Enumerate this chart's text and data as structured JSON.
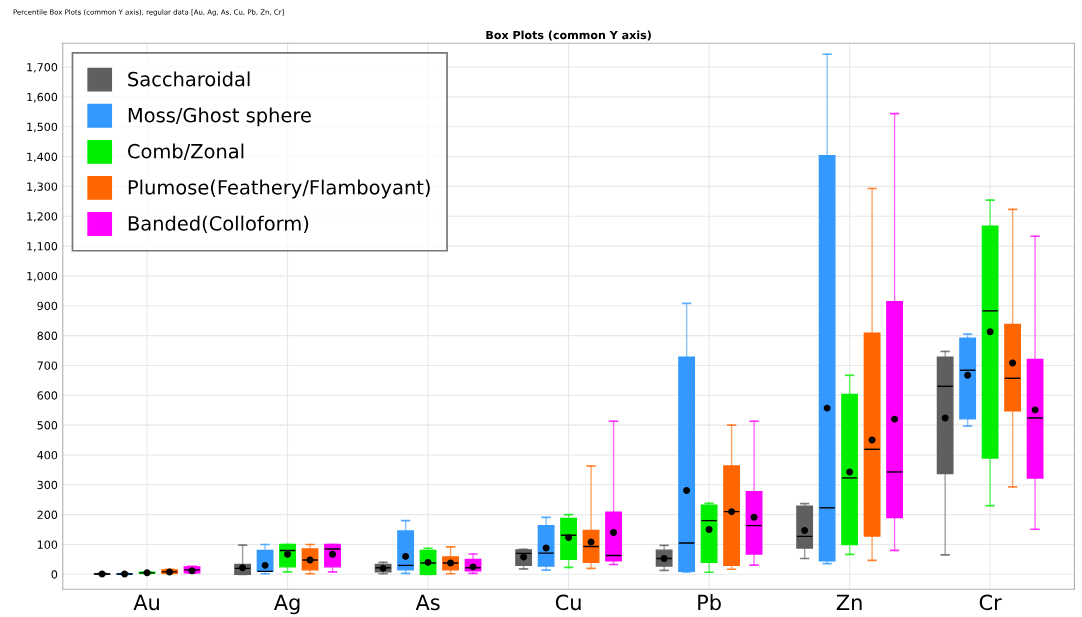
{
  "chart_data": {
    "type": "box",
    "title": "Box Plots (common Y axis)",
    "annotations": [
      "Percentile Box Plots (common Y axis), regular data [Au, Ag, As, Cu, Pb, Zn, Cr]"
    ],
    "categories": [
      "Au",
      "Ag",
      "As",
      "Cu",
      "Pb",
      "Zn",
      "Cr"
    ],
    "ylim": [
      -50,
      1780
    ],
    "yticks": [
      0,
      100,
      200,
      300,
      400,
      500,
      600,
      700,
      800,
      900,
      {
        "value": 1000,
        "label": "1,000"
      },
      {
        "value": 1100,
        "label": "1,100"
      },
      {
        "value": 1200,
        "label": "1,200"
      },
      {
        "value": 1300,
        "label": "1,300"
      },
      {
        "value": 1400,
        "label": "1,400"
      },
      {
        "value": 1500,
        "label": "1,500"
      },
      {
        "value": 1600,
        "label": "1,600"
      },
      {
        "value": 1700,
        "label": "1,700"
      }
    ],
    "grid": true,
    "legend": "top left",
    "marker": "circle",
    "series": [
      {
        "name": "Saccharoidal",
        "color": "#5f5f5f",
        "boxes": [
          {
            "low": 0,
            "q1": 0,
            "median": 1,
            "q3": 2,
            "high": 3,
            "mean": 1
          },
          {
            "low": 0,
            "q1": 0,
            "median": 20,
            "q3": 33,
            "high": 98,
            "mean": 22
          },
          {
            "low": 2,
            "q1": 8,
            "median": 22,
            "q3": 33,
            "high": 40,
            "mean": 20
          },
          {
            "low": 18,
            "q1": 30,
            "median": 70,
            "q3": 82,
            "high": 84,
            "mean": 58
          },
          {
            "low": 13,
            "q1": 28,
            "median": 53,
            "q3": 81,
            "high": 97,
            "mean": 53
          },
          {
            "low": 53,
            "q1": 88,
            "median": 127,
            "q3": 228,
            "high": 237,
            "mean": 147
          },
          {
            "low": 65,
            "q1": 338,
            "median": 630,
            "q3": 728,
            "high": 747,
            "mean": 524
          }
        ]
      },
      {
        "name": "Moss/Ghost sphere",
        "color": "#3399ff",
        "boxes": [
          {
            "low": 0,
            "q1": 0,
            "median": 1,
            "q3": 2,
            "high": 3,
            "mean": 1
          },
          {
            "low": 2,
            "q1": 10,
            "median": 10,
            "q3": 80,
            "high": 100,
            "mean": 30
          },
          {
            "low": 3,
            "q1": 15,
            "median": 30,
            "q3": 145,
            "high": 180,
            "mean": 60
          },
          {
            "low": 14,
            "q1": 28,
            "median": 71,
            "q3": 163,
            "high": 191,
            "mean": 88
          },
          {
            "low": 8,
            "q1": 10,
            "median": 105,
            "q3": 728,
            "high": 908,
            "mean": 281
          },
          {
            "low": 36,
            "q1": 45,
            "median": 223,
            "q3": 1403,
            "high": 1743,
            "mean": 557
          },
          {
            "low": 497,
            "q1": 521,
            "median": 684,
            "q3": 791,
            "high": 805,
            "mean": 667
          }
        ]
      },
      {
        "name": "Comb/Zonal",
        "color": "#00ee00",
        "boxes": [
          {
            "low": 2,
            "q1": 3,
            "median": 5,
            "q3": 7,
            "high": 8,
            "mean": 5
          },
          {
            "low": 8,
            "q1": 25,
            "median": 80,
            "q3": 100,
            "high": 100,
            "mean": 67
          },
          {
            "low": 0,
            "q1": 0,
            "median": 38,
            "q3": 80,
            "high": 87,
            "mean": 40
          },
          {
            "low": 23,
            "q1": 50,
            "median": 131,
            "q3": 187,
            "high": 200,
            "mean": 123
          },
          {
            "low": 7,
            "q1": 40,
            "median": 180,
            "q3": 232,
            "high": 238,
            "mean": 150
          },
          {
            "low": 67,
            "q1": 100,
            "median": 323,
            "q3": 603,
            "high": 667,
            "mean": 343
          },
          {
            "low": 230,
            "q1": 390,
            "median": 883,
            "q3": 1167,
            "high": 1254,
            "mean": 813
          }
        ]
      },
      {
        "name": "Plumose(Feathery/Flamboyant)",
        "color": "#ff6600",
        "boxes": [
          {
            "low": 2,
            "q1": 3,
            "median": 8,
            "q3": 15,
            "high": 17,
            "mean": 8
          },
          {
            "low": 2,
            "q1": 15,
            "median": 48,
            "q3": 85,
            "high": 100,
            "mean": 48
          },
          {
            "low": 2,
            "q1": 15,
            "median": 38,
            "q3": 58,
            "high": 92,
            "mean": 38
          },
          {
            "low": 20,
            "q1": 40,
            "median": 93,
            "q3": 147,
            "high": 363,
            "mean": 108
          },
          {
            "low": 17,
            "q1": 30,
            "median": 210,
            "q3": 363,
            "high": 500,
            "mean": 210
          },
          {
            "low": 47,
            "q1": 128,
            "median": 419,
            "q3": 808,
            "high": 1293,
            "mean": 450
          },
          {
            "low": 293,
            "q1": 548,
            "median": 657,
            "q3": 837,
            "high": 1223,
            "mean": 708
          }
        ]
      },
      {
        "name": "Banded(Colloform)",
        "color": "#ff00ff",
        "boxes": [
          {
            "low": 4,
            "q1": 5,
            "median": 15,
            "q3": 25,
            "high": 27,
            "mean": 12
          },
          {
            "low": 8,
            "q1": 25,
            "median": 85,
            "q3": 100,
            "high": 100,
            "mean": 67
          },
          {
            "low": 3,
            "q1": 12,
            "median": 22,
            "q3": 50,
            "high": 68,
            "mean": 25
          },
          {
            "low": 33,
            "q1": 45,
            "median": 63,
            "q3": 208,
            "high": 513,
            "mean": 140
          },
          {
            "low": 31,
            "q1": 68,
            "median": 163,
            "q3": 277,
            "high": 513,
            "mean": 191
          },
          {
            "low": 80,
            "q1": 190,
            "median": 343,
            "q3": 914,
            "high": 1544,
            "mean": 520
          },
          {
            "low": 151,
            "q1": 323,
            "median": 524,
            "q3": 720,
            "high": 1133,
            "mean": 551
          }
        ]
      }
    ]
  }
}
